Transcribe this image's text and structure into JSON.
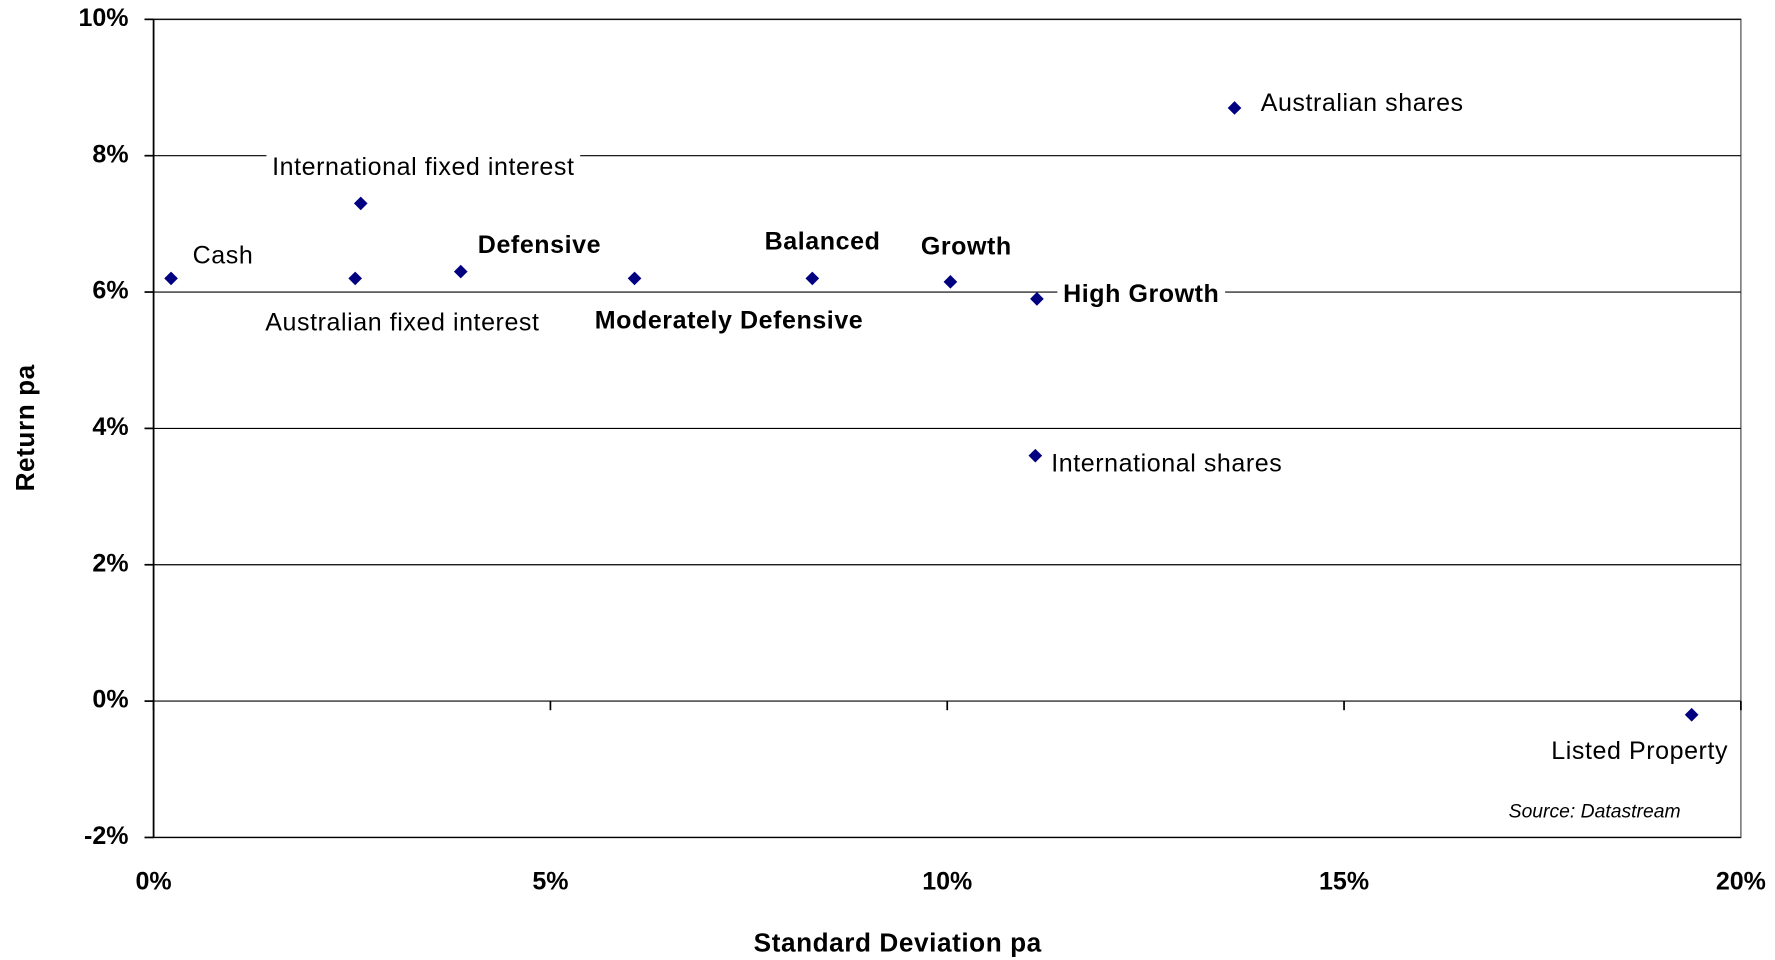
{
  "chart_data": {
    "type": "scatter",
    "xlabel": "Standard Deviation pa",
    "ylabel": "Return pa",
    "source": "Source: Datastream",
    "color": "#000080",
    "grid": true,
    "xlim": [
      0,
      20
    ],
    "ylim": [
      -2,
      10
    ],
    "xticks": [
      {
        "value": 0,
        "label": "0%"
      },
      {
        "value": 5,
        "label": "5%"
      },
      {
        "value": 10,
        "label": "10%"
      },
      {
        "value": 15,
        "label": "15%"
      },
      {
        "value": 20,
        "label": "20%"
      }
    ],
    "yticks": [
      {
        "value": -2,
        "label": "-2%"
      },
      {
        "value": 0,
        "label": "0%"
      },
      {
        "value": 2,
        "label": "2%"
      },
      {
        "value": 4,
        "label": "4%"
      },
      {
        "value": 6,
        "label": "6%"
      },
      {
        "value": 8,
        "label": "8%"
      },
      {
        "value": 10,
        "label": "10%"
      }
    ],
    "points": [
      {
        "name": "Cash",
        "x": 0.22,
        "y": 6.2,
        "bold": false
      },
      {
        "name": "International fixed interest",
        "x": 2.61,
        "y": 7.3,
        "bold": false
      },
      {
        "name": "Australian fixed interest",
        "x": 2.54,
        "y": 6.2,
        "bold": false
      },
      {
        "name": "Defensive",
        "x": 3.87,
        "y": 6.3,
        "bold": true
      },
      {
        "name": "Moderately Defensive",
        "x": 6.06,
        "y": 6.2,
        "bold": true
      },
      {
        "name": "Balanced",
        "x": 8.3,
        "y": 6.2,
        "bold": true
      },
      {
        "name": "Growth",
        "x": 10.04,
        "y": 6.15,
        "bold": true
      },
      {
        "name": "High Growth",
        "x": 11.13,
        "y": 5.9,
        "bold": true
      },
      {
        "name": "International shares",
        "x": 11.11,
        "y": 3.6,
        "bold": false
      },
      {
        "name": "Australian shares",
        "x": 13.62,
        "y": 8.7,
        "bold": false
      },
      {
        "name": "Listed Property",
        "x": 19.38,
        "y": -0.2,
        "bold": false
      }
    ]
  }
}
